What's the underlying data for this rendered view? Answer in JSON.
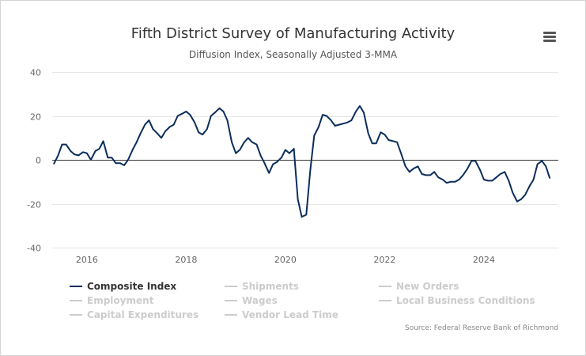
{
  "header": {
    "title": "Fifth District Survey of Manufacturing Activity",
    "subtitle": "Diffusion Index, Seasonally Adjusted 3-MMA",
    "menu_icon": "hamburger-menu-icon"
  },
  "legend": {
    "items": [
      {
        "label": "Composite Index",
        "active": true
      },
      {
        "label": "Shipments",
        "active": false
      },
      {
        "label": "New Orders",
        "active": false
      },
      {
        "label": "Employment",
        "active": false
      },
      {
        "label": "Wages",
        "active": false
      },
      {
        "label": "Local Business Conditions",
        "active": false
      },
      {
        "label": "Capital Expenditures",
        "active": false
      },
      {
        "label": "Vendor Lead Time",
        "active": false
      }
    ]
  },
  "credits": "Source: Federal Reserve Bank of Richmond",
  "colors": {
    "series": "#0b2d5b",
    "gridline": "#e6e6e6",
    "zero_line": "#333333",
    "inactive": "#cccccc"
  },
  "chart_data": {
    "type": "line",
    "title": "Fifth District Survey of Manufacturing Activity",
    "subtitle": "Diffusion Index, Seasonally Adjusted 3-MMA",
    "xlabel": "",
    "ylabel": "",
    "ylim": [
      -40,
      40
    ],
    "yticks": [
      -40,
      -20,
      0,
      20,
      40
    ],
    "xticks": [
      {
        "label": "2016",
        "x": 2016.0
      },
      {
        "label": "2018",
        "x": 2018.0
      },
      {
        "label": "2020",
        "x": 2020.0
      },
      {
        "label": "2022",
        "x": 2022.0
      },
      {
        "label": "2024",
        "x": 2024.0
      }
    ],
    "xlim": [
      2015.3,
      2025.5
    ],
    "grid": true,
    "legend_position": "bottom",
    "series": [
      {
        "name": "Composite Index",
        "color": "#0b2d5b",
        "points": [
          [
            2015.33,
            -2
          ],
          [
            2015.42,
            2
          ],
          [
            2015.5,
            7
          ],
          [
            2015.58,
            7
          ],
          [
            2015.67,
            4
          ],
          [
            2015.75,
            2.5
          ],
          [
            2015.83,
            2
          ],
          [
            2015.92,
            3.5
          ],
          [
            2016.0,
            3
          ],
          [
            2016.08,
            0
          ],
          [
            2016.17,
            4
          ],
          [
            2016.25,
            5
          ],
          [
            2016.33,
            8.5
          ],
          [
            2016.42,
            1
          ],
          [
            2016.5,
            1
          ],
          [
            2016.58,
            -1.5
          ],
          [
            2016.67,
            -1.5
          ],
          [
            2016.75,
            -2.5
          ],
          [
            2016.83,
            0
          ],
          [
            2016.92,
            4.5
          ],
          [
            2017.0,
            8
          ],
          [
            2017.08,
            12
          ],
          [
            2017.17,
            16
          ],
          [
            2017.25,
            18
          ],
          [
            2017.33,
            14
          ],
          [
            2017.42,
            12
          ],
          [
            2017.5,
            10
          ],
          [
            2017.58,
            13
          ],
          [
            2017.67,
            15
          ],
          [
            2017.75,
            16
          ],
          [
            2017.83,
            20
          ],
          [
            2017.92,
            21
          ],
          [
            2018.0,
            22
          ],
          [
            2018.08,
            20.5
          ],
          [
            2018.17,
            17
          ],
          [
            2018.25,
            12.5
          ],
          [
            2018.33,
            11.5
          ],
          [
            2018.42,
            14
          ],
          [
            2018.5,
            20
          ],
          [
            2018.58,
            21.5
          ],
          [
            2018.67,
            23.5
          ],
          [
            2018.75,
            22
          ],
          [
            2018.83,
            18
          ],
          [
            2018.92,
            8
          ],
          [
            2019.0,
            3
          ],
          [
            2019.08,
            4.5
          ],
          [
            2019.17,
            8
          ],
          [
            2019.25,
            10
          ],
          [
            2019.33,
            8
          ],
          [
            2019.42,
            7
          ],
          [
            2019.5,
            2
          ],
          [
            2019.58,
            -1.5
          ],
          [
            2019.67,
            -6
          ],
          [
            2019.75,
            -2
          ],
          [
            2019.83,
            -1
          ],
          [
            2019.92,
            1
          ],
          [
            2020.0,
            4.5
          ],
          [
            2020.08,
            3
          ],
          [
            2020.17,
            5
          ],
          [
            2020.25,
            -18
          ],
          [
            2020.33,
            -26
          ],
          [
            2020.42,
            -25
          ],
          [
            2020.5,
            -5
          ],
          [
            2020.58,
            11
          ],
          [
            2020.67,
            15
          ],
          [
            2020.75,
            20.5
          ],
          [
            2020.83,
            20
          ],
          [
            2020.92,
            18
          ],
          [
            2021.0,
            15.5
          ],
          [
            2021.08,
            16
          ],
          [
            2021.17,
            16.5
          ],
          [
            2021.25,
            17
          ],
          [
            2021.33,
            18
          ],
          [
            2021.42,
            22
          ],
          [
            2021.5,
            24.5
          ],
          [
            2021.58,
            21.5
          ],
          [
            2021.67,
            12
          ],
          [
            2021.75,
            7.5
          ],
          [
            2021.83,
            7.5
          ],
          [
            2021.92,
            12.5
          ],
          [
            2022.0,
            11.5
          ],
          [
            2022.08,
            9
          ],
          [
            2022.17,
            8.5
          ],
          [
            2022.25,
            8
          ],
          [
            2022.33,
            3
          ],
          [
            2022.42,
            -3
          ],
          [
            2022.5,
            -5.5
          ],
          [
            2022.58,
            -4
          ],
          [
            2022.67,
            -3
          ],
          [
            2022.75,
            -6.5
          ],
          [
            2022.83,
            -7
          ],
          [
            2022.92,
            -7
          ],
          [
            2023.0,
            -5.5
          ],
          [
            2023.08,
            -8
          ],
          [
            2023.17,
            -9
          ],
          [
            2023.25,
            -10.5
          ],
          [
            2023.33,
            -10
          ],
          [
            2023.42,
            -10
          ],
          [
            2023.5,
            -9
          ],
          [
            2023.58,
            -7
          ],
          [
            2023.67,
            -4
          ],
          [
            2023.75,
            -0.5
          ],
          [
            2023.83,
            -0.5
          ],
          [
            2023.92,
            -4.5
          ],
          [
            2024.0,
            -9
          ],
          [
            2024.08,
            -9.5
          ],
          [
            2024.17,
            -9.5
          ],
          [
            2024.25,
            -8
          ],
          [
            2024.33,
            -6.5
          ],
          [
            2024.42,
            -5.5
          ],
          [
            2024.5,
            -9.5
          ],
          [
            2024.58,
            -15
          ],
          [
            2024.67,
            -19
          ],
          [
            2024.75,
            -18
          ],
          [
            2024.83,
            -16
          ],
          [
            2024.92,
            -12
          ],
          [
            2025.0,
            -9
          ],
          [
            2025.08,
            -2
          ],
          [
            2025.17,
            -0.5
          ],
          [
            2025.25,
            -3
          ],
          [
            2025.33,
            -8.5
          ]
        ]
      }
    ]
  }
}
